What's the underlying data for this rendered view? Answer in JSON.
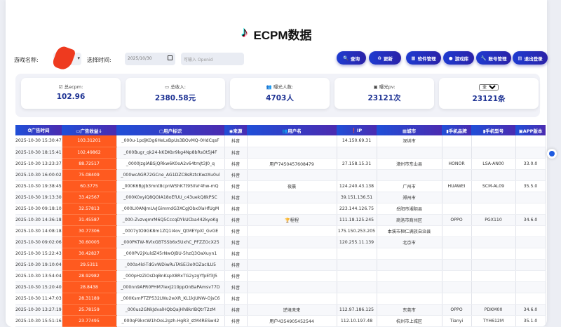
{
  "title": "ECPM数据",
  "controls": {
    "game_label": "游戏名称:",
    "time_label": "选择时间:",
    "date_value": "2025/10/30",
    "openid_placeholder": "可输入 Openid"
  },
  "buttons": [
    {
      "icon": "search-icon",
      "glyph": "🔍",
      "label": "查询"
    },
    {
      "icon": "refresh-icon",
      "glyph": "♻",
      "label": "更新"
    },
    {
      "icon": "software-icon",
      "glyph": "▦",
      "label": "软件管理"
    },
    {
      "icon": "game-icon",
      "glyph": "●",
      "label": "游戏库"
    },
    {
      "icon": "account-icon",
      "glyph": "🔧",
      "label": "账号管理"
    },
    {
      "icon": "logout-icon",
      "glyph": "▤",
      "label": "退出登录"
    }
  ],
  "stats": [
    {
      "label": "总ecpm:",
      "value": "102.96",
      "glyph": "☑"
    },
    {
      "label": "总收入:",
      "value": "2380.58元",
      "glyph": "▭"
    },
    {
      "label": "曝光人数:",
      "value": "4703人",
      "glyph": "👥"
    },
    {
      "label": "曝光pv:",
      "value": "23121次",
      "glyph": "▣"
    }
  ],
  "count_card": {
    "select": "全部",
    "value": "23121条"
  },
  "colors": {
    "accent": "#2435c8",
    "revenue": "#ff5a1f"
  },
  "table": {
    "headers": [
      "⏱广告时间",
      "▭广告收益↓",
      "▢用户标识",
      "◉来源",
      "👥用户名",
      "❗IP",
      "▦城市",
      "▮手机品牌",
      "▮手机型号",
      "▣APP版本"
    ],
    "rows": [
      [
        "2025-10-30 15:30:47",
        "103.31201",
        "_000u-1pdjKOg6HeLxBpUs3BOvMQ-0HdCqsF",
        "抖音",
        "",
        "14.150.69.31",
        "深圳市",
        "",
        "",
        ""
      ],
      [
        "2025-10-30 18:15:41",
        "102.49862",
        "_000Bugr_qk24-kKDKbr9kg4Np8bRsOt5J4F",
        "抖音",
        "",
        "",
        "",
        "",
        "",
        ""
      ],
      [
        "2025-10-30 13:23:37",
        "88.72517",
        "_0000JzglABSjQRkw6K0oA2v64tmJt3J0_q",
        "抖音",
        "用户7450457608479",
        "27.158.15.31",
        "漳州市东山县",
        "HONOR",
        "LSA-AN00",
        "33.0.0"
      ],
      [
        "2025-10-30 16:00:02",
        "75.08409",
        "_000wcAGR72GCne_AG1DZC8sRztcKwzXu0ul",
        "抖音",
        "",
        "",
        "",
        "",
        "",
        ""
      ],
      [
        "2025-10-30 19:38:45",
        "60.3775",
        "_000K6BpJb3mnt8cpnWShK7t95IIVr4hw-mQ",
        "抖音",
        "夜晨",
        "124.240.43.138",
        "广州市",
        "HUAWEI",
        "SCM-AL09",
        "35.5.0"
      ],
      [
        "2025-10-30 19:13:30",
        "33.42567",
        "_000K0xyiQ8QOIA18oEfUU_c43uekQ8kPSC",
        "抖音",
        "",
        "39.151.136.51",
        "郑州市",
        "",
        "",
        ""
      ],
      [
        "2025-10-30 09:18:10",
        "32.57813",
        "_000LI0ANJmUvJGimmdG3XCgJObx0laHfUgM",
        "抖音",
        "",
        "223.144.126.75",
        "岳阳市湘阴县",
        "",
        "",
        ""
      ],
      [
        "2025-10-30 14:36:18",
        "31.45587",
        "_000-ZvzvqmrM6Q5CccqDYkUCba442kyoKg",
        "抖音",
        "🏆程程",
        "111.18.125.245",
        "商洛市商州区",
        "OPPO",
        "PGX110",
        "34.6.0"
      ],
      [
        "2025-10-30 14:08:18",
        "30.77306",
        "_0007ytO9GK8m1ZQ1I4ov_QtMEYpXl_GvGE",
        "抖音",
        "",
        "175.150.253.205",
        "本溪市桓仁满族自治县",
        "",
        "",
        ""
      ],
      [
        "2025-10-30 09:02:06",
        "30.60005",
        "_000PKTW-RVlxGBTSSb6x5UxhC_PFZZOcX25",
        "抖音",
        "",
        "120.255.11.139",
        "北京市",
        "",
        "",
        ""
      ],
      [
        "2025-10-30 15:22:43",
        "30.42827",
        "_000PV2jXuldZ45rNwOJBU-5hzQ3OaXuyn1",
        "抖音",
        "",
        "",
        "",
        "",
        "",
        ""
      ],
      [
        "2025-10-30 19:10:04",
        "29.5311",
        "_000a4ld-TdGvWDiwRuTASEi3o0OZacILU5",
        "抖音",
        "",
        "",
        "",
        "",
        "",
        ""
      ],
      [
        "2025-10-30 13:54:04",
        "28.92982",
        "_000pHzZiOsDqBnKspX8RxTG2yzgYfpEf3J5",
        "抖音",
        "",
        "",
        "",
        "",
        "",
        ""
      ],
      [
        "2025-10-30 15:20:40",
        "28.8438",
        "_000nn9APR0PHM7IexJ219ppOnBaPAmsv77D",
        "抖音",
        "",
        "",
        "",
        "",
        "",
        ""
      ],
      [
        "2025-10-30 11:47:03",
        "28.31189",
        "_000KsmPTZP532LWu2wXR_KL1kJUNW-OjsC6",
        "抖音",
        "",
        "",
        "",
        "",
        "",
        ""
      ],
      [
        "2025-10-30 13:27:19",
        "25.78159",
        "_000us2GNkJdvalHQbQajHh8krIBQtrT2zM",
        "抖音",
        "逆境未来",
        "112.97.186.125",
        "东莞市",
        "OPPO",
        "PDKM00",
        "34.6.0"
      ],
      [
        "2025-10-30 15:51:16",
        "23.77495",
        "_000qF9krcW1hOoL2gzh-HgR3_stM4RESw42",
        "抖音",
        "用户4354905452544",
        "112.10.197.48",
        "杭州市上城区",
        "Tianyi",
        "TYH612M",
        "35.1.0"
      ]
    ]
  }
}
